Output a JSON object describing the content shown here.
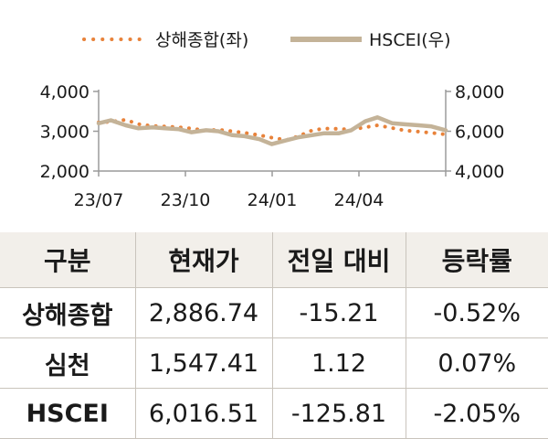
{
  "chart_data": {
    "type": "line",
    "x_ticks": [
      "23/07",
      "23/10",
      "24/01",
      "24/04"
    ],
    "y_left": {
      "ticks": [
        "2,000",
        "3,000",
        "4,000"
      ],
      "ylim": [
        2000,
        4000
      ]
    },
    "y_right": {
      "ticks": [
        "4,000",
        "6,000",
        "8,000"
      ],
      "ylim": [
        4000,
        8000
      ]
    },
    "series": [
      {
        "name": "상해종합(좌)",
        "axis": "left",
        "style": "dotted",
        "color": "#e8823a",
        "points": [
          [
            "2023-07-01",
            3220
          ],
          [
            "2023-07-15",
            3240
          ],
          [
            "2023-08-01",
            3290
          ],
          [
            "2023-08-15",
            3180
          ],
          [
            "2023-09-01",
            3130
          ],
          [
            "2023-09-15",
            3120
          ],
          [
            "2023-10-01",
            3100
          ],
          [
            "2023-10-15",
            3070
          ],
          [
            "2023-11-01",
            3020
          ],
          [
            "2023-11-15",
            3040
          ],
          [
            "2023-12-01",
            3000
          ],
          [
            "2023-12-15",
            2960
          ],
          [
            "2024-01-01",
            2900
          ],
          [
            "2024-01-15",
            2840
          ],
          [
            "2024-02-01",
            2780
          ],
          [
            "2024-02-15",
            2880
          ],
          [
            "2024-03-01",
            3020
          ],
          [
            "2024-03-15",
            3070
          ],
          [
            "2024-04-01",
            3060
          ],
          [
            "2024-04-15",
            3040
          ],
          [
            "2024-05-01",
            3100
          ],
          [
            "2024-05-15",
            3150
          ],
          [
            "2024-06-01",
            3080
          ],
          [
            "2024-06-15",
            3020
          ],
          [
            "2024-07-01",
            2990
          ],
          [
            "2024-07-15",
            2960
          ],
          [
            "2024-08-01",
            2920
          ]
        ]
      },
      {
        "name": "HSCEI(우)",
        "axis": "right",
        "style": "solid",
        "color": "#c4b398",
        "points": [
          [
            "2023-07-01",
            6400
          ],
          [
            "2023-07-15",
            6550
          ],
          [
            "2023-08-01",
            6300
          ],
          [
            "2023-08-15",
            6150
          ],
          [
            "2023-09-01",
            6200
          ],
          [
            "2023-09-15",
            6150
          ],
          [
            "2023-10-01",
            6100
          ],
          [
            "2023-10-15",
            5950
          ],
          [
            "2023-11-01",
            6050
          ],
          [
            "2023-11-15",
            6000
          ],
          [
            "2023-12-01",
            5800
          ],
          [
            "2023-12-15",
            5750
          ],
          [
            "2024-01-01",
            5600
          ],
          [
            "2024-01-15",
            5350
          ],
          [
            "2024-02-01",
            5550
          ],
          [
            "2024-02-15",
            5700
          ],
          [
            "2024-03-01",
            5800
          ],
          [
            "2024-03-15",
            5900
          ],
          [
            "2024-04-01",
            5900
          ],
          [
            "2024-04-15",
            6050
          ],
          [
            "2024-05-01",
            6500
          ],
          [
            "2024-05-15",
            6700
          ],
          [
            "2024-06-01",
            6400
          ],
          [
            "2024-06-15",
            6350
          ],
          [
            "2024-07-01",
            6300
          ],
          [
            "2024-07-15",
            6250
          ],
          [
            "2024-08-01",
            6050
          ]
        ]
      }
    ]
  },
  "table": {
    "headers": [
      "구분",
      "현재가",
      "전일 대비",
      "등락률"
    ],
    "rows": [
      {
        "name": "상해종합",
        "price": "2,886.74",
        "change": "-15.21",
        "rate": "-0.52%"
      },
      {
        "name": "심천",
        "price": "1,547.41",
        "change": "1.12",
        "rate": "0.07%"
      },
      {
        "name": "HSCEI",
        "price": "6,016.51",
        "change": "-125.81",
        "rate": "-2.05%"
      }
    ]
  }
}
